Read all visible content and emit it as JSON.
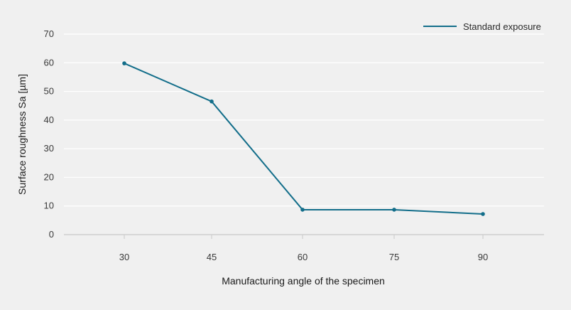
{
  "chart_data": {
    "type": "line",
    "title": "",
    "xlabel": "Manufacturing angle of the specimen",
    "ylabel": "Surface roughness Sa [µm]",
    "x": [
      "30",
      "45",
      "60",
      "75",
      "90"
    ],
    "series": [
      {
        "name": "Standard exposure",
        "values": [
          59.8,
          46.5,
          8.7,
          8.7,
          7.2
        ]
      }
    ],
    "yticks": [
      "0",
      "10",
      "20",
      "30",
      "40",
      "50",
      "60",
      "70"
    ],
    "ylim": [
      0,
      70
    ],
    "grid": true,
    "legend": "top-right",
    "colors": {
      "series": "#136e8a",
      "grid": "#ffffff",
      "axis": "#c8c8c8",
      "background": "#f0f0f0"
    }
  }
}
